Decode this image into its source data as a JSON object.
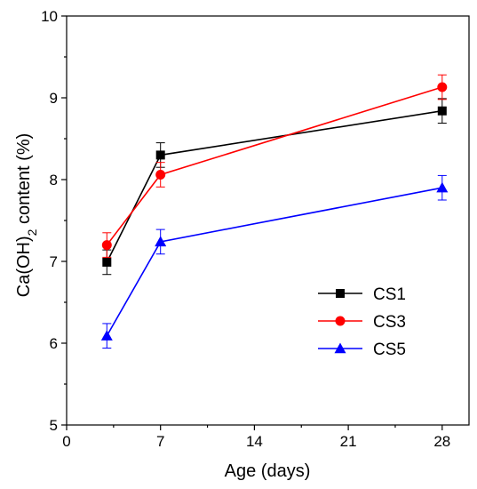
{
  "chart_data": {
    "type": "line",
    "xlabel": "Age (days)",
    "ylabel_main": "Ca(OH)",
    "ylabel_sub": "2",
    "ylabel_rest": " content (%)",
    "xlim": [
      0,
      30
    ],
    "ylim": [
      5,
      10
    ],
    "xticks": [
      0,
      7,
      14,
      21,
      28
    ],
    "yticks": [
      5,
      6,
      7,
      8,
      9,
      10
    ],
    "x": [
      3,
      7,
      28
    ],
    "legend_position": "center-right",
    "grid": false,
    "series": [
      {
        "name": "CS1",
        "color": "#000000",
        "marker": "square",
        "values": [
          6.99,
          8.3,
          8.84
        ],
        "errors": [
          0.15,
          0.15,
          0.15
        ]
      },
      {
        "name": "CS3",
        "color": "#ff0000",
        "marker": "circle",
        "values": [
          7.2,
          8.06,
          9.13
        ],
        "errors": [
          0.15,
          0.15,
          0.15
        ]
      },
      {
        "name": "CS5",
        "color": "#0000ff",
        "marker": "triangle",
        "values": [
          6.09,
          7.24,
          7.9
        ],
        "errors": [
          0.15,
          0.15,
          0.15
        ]
      }
    ]
  }
}
